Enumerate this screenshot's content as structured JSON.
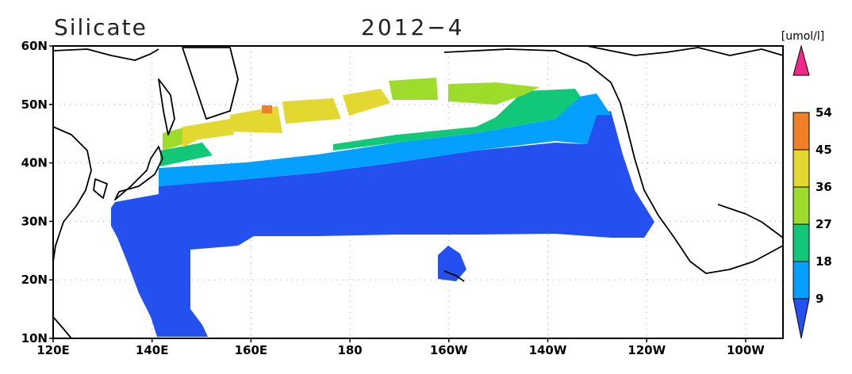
{
  "title": "Silicate",
  "date": "2012−4",
  "unit": "[umol/l]",
  "lat_ticks": [
    "60N",
    "50N",
    "40N",
    "30N",
    "20N",
    "10N"
  ],
  "lon_ticks": [
    "120E",
    "140E",
    "160E",
    "180",
    "160W",
    "140W",
    "120W",
    "100W"
  ],
  "colorbar": {
    "levels": [
      9,
      18,
      27,
      36,
      45,
      54
    ],
    "colors": [
      "#2450f0",
      "#05a0ff",
      "#10c878",
      "#9edc2c",
      "#e2d830",
      "#f08028",
      "#f0288c"
    ]
  }
}
